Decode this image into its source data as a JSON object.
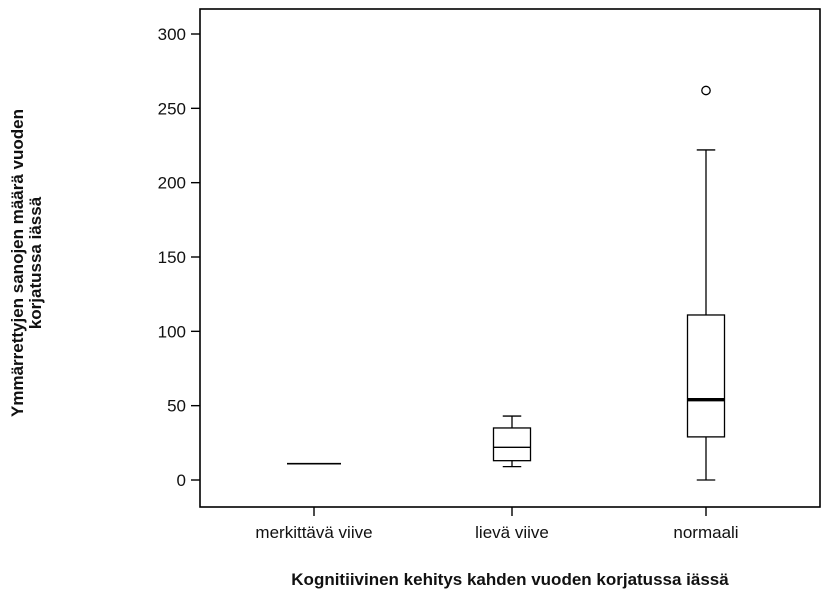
{
  "chart_data": {
    "type": "boxplot",
    "xlabel": "Kognitiivinen kehitys kahden vuoden korjatussa iässä",
    "ylabel_lines": [
      "Ymmärrettyjen sanojen määrä vuoden",
      "korjatussa iässä"
    ],
    "categories": [
      "merkittävä viive",
      "lievä viive",
      "normaali"
    ],
    "ylim": [
      -17,
      318
    ],
    "yticks": [
      0,
      50,
      100,
      150,
      200,
      250,
      300
    ],
    "grid": false,
    "boxes": [
      {
        "category": "merkittävä viive",
        "min": 11,
        "q1": 11,
        "median": 11,
        "q3": 11,
        "max": 11,
        "outliers": []
      },
      {
        "category": "lievä viive",
        "min": 9,
        "q1": 13,
        "median": 22,
        "q3": 35,
        "max": 43,
        "outliers": []
      },
      {
        "category": "normaali",
        "min": 0,
        "q1": 29,
        "median": 54,
        "q3": 111,
        "max": 222,
        "outliers": [
          262
        ]
      }
    ]
  }
}
